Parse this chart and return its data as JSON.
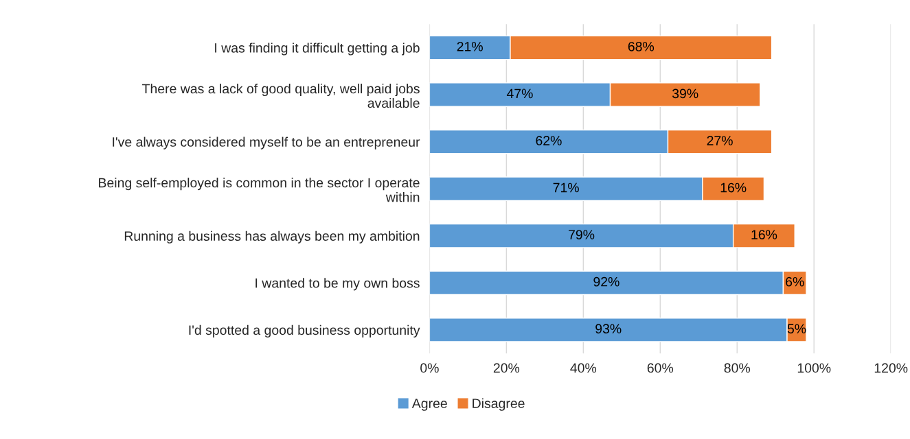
{
  "chart_data": {
    "type": "bar",
    "orientation": "horizontal",
    "stacked": true,
    "categories": [
      "I was finding it difficult getting a job",
      "There was a lack of good quality, well paid jobs\navailable",
      "I've always considered myself to be an entrepreneur",
      "Being self-employed is common in the sector I operate\nwithin",
      "Running a business has always been my ambition",
      "I wanted to be my own boss",
      "I'd spotted a good business opportunity"
    ],
    "series": [
      {
        "name": "Agree",
        "color": "#5b9bd5",
        "values": [
          21,
          47,
          62,
          71,
          79,
          92,
          93
        ],
        "value_labels": [
          "21%",
          "47%",
          "62%",
          "71%",
          "79%",
          "92%",
          "93%"
        ]
      },
      {
        "name": "Disagree",
        "color": "#ed7d31",
        "values": [
          68,
          39,
          27,
          16,
          16,
          6,
          5
        ],
        "value_labels": [
          "68%",
          "39%",
          "27%",
          "16%",
          "16%",
          "6%",
          "5%"
        ]
      }
    ],
    "xlim": [
      0,
      120
    ],
    "xticks": [
      {
        "value": 0,
        "label": "0%"
      },
      {
        "value": 20,
        "label": "20%"
      },
      {
        "value": 40,
        "label": "40%"
      },
      {
        "value": 60,
        "label": "60%"
      },
      {
        "value": 80,
        "label": "80%"
      },
      {
        "value": 100,
        "label": "100%"
      },
      {
        "value": 120,
        "label": "120%"
      }
    ],
    "grid": "x",
    "legend": "bottom"
  }
}
